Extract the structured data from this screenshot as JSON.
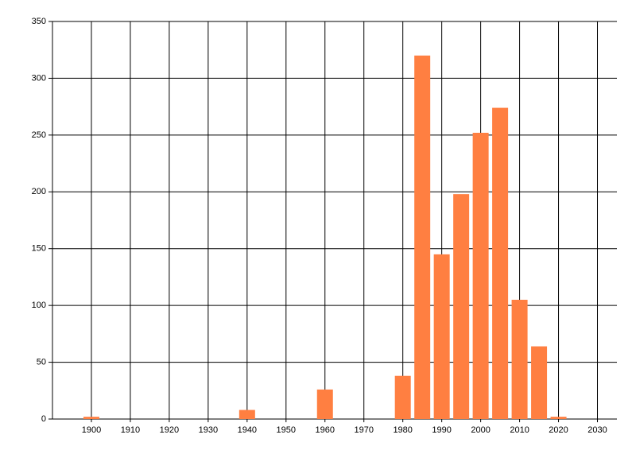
{
  "chart_data": {
    "type": "bar",
    "x": [
      1900,
      1940,
      1960,
      1980,
      1985,
      1990,
      1995,
      2000,
      2005,
      2010,
      2015,
      2020
    ],
    "values": [
      2,
      8,
      26,
      38,
      320,
      145,
      198,
      252,
      274,
      105,
      64,
      2
    ],
    "color": "#ff7f41",
    "xlim": [
      1890,
      2035
    ],
    "xticks": [
      1900,
      1910,
      1920,
      1930,
      1940,
      1950,
      1960,
      1970,
      1980,
      1990,
      2000,
      2010,
      2020,
      2030
    ],
    "ylim": [
      0,
      350
    ],
    "yticks": [
      0,
      50,
      100,
      150,
      200,
      250,
      300,
      350
    ],
    "grid": true
  }
}
